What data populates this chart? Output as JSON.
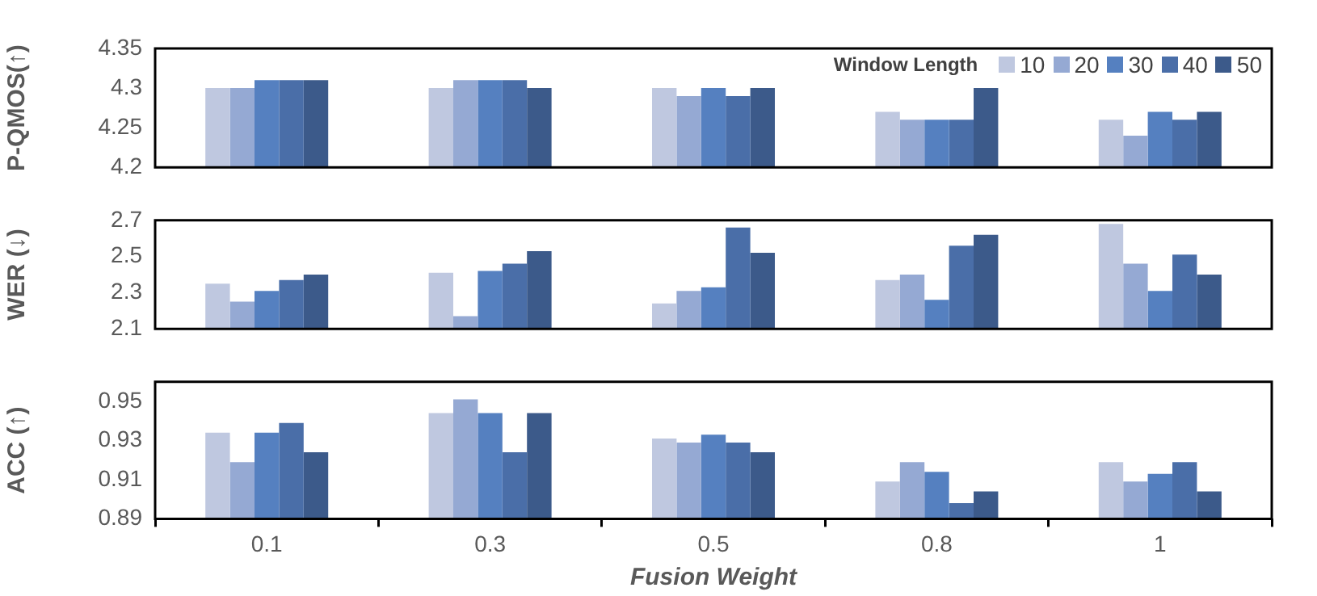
{
  "chart_data": [
    {
      "type": "bar",
      "categories": [
        "0.1",
        "0.3",
        "0.5",
        "0.8",
        "1"
      ],
      "ylabel": "P-QMOS(↑)",
      "ylim": [
        4.2,
        4.35
      ],
      "yticks": [
        4.2,
        4.25,
        4.3,
        4.35
      ],
      "tick_labels": "y",
      "legend": "top right",
      "legend_title": "Window Length",
      "series": [
        {
          "name": "10",
          "color": "#bfc8e0",
          "values": [
            4.3,
            4.3,
            4.3,
            4.27,
            4.26
          ]
        },
        {
          "name": "20",
          "color": "#95a9d3",
          "values": [
            4.3,
            4.31,
            4.29,
            4.26,
            4.24
          ]
        },
        {
          "name": "30",
          "color": "#5580c0",
          "values": [
            4.31,
            4.31,
            4.3,
            4.26,
            4.27
          ]
        },
        {
          "name": "40",
          "color": "#4a6ea8",
          "values": [
            4.31,
            4.31,
            4.29,
            4.26,
            4.26
          ]
        },
        {
          "name": "50",
          "color": "#3c5a8a",
          "values": [
            4.31,
            4.3,
            4.3,
            4.3,
            4.27
          ]
        }
      ]
    },
    {
      "type": "bar",
      "categories": [
        "0.1",
        "0.3",
        "0.5",
        "0.8",
        "1"
      ],
      "ylabel": "WER (↓)",
      "ylim": [
        2.1,
        2.7
      ],
      "yticks": [
        2.1,
        2.3,
        2.5,
        2.7
      ],
      "tick_labels": "y",
      "series": [
        {
          "color": "#bfc8e0",
          "values": [
            2.35,
            2.41,
            2.24,
            2.37,
            2.68
          ]
        },
        {
          "color": "#95a9d3",
          "values": [
            2.25,
            2.17,
            2.31,
            2.4,
            2.46
          ]
        },
        {
          "color": "#5580c0",
          "values": [
            2.31,
            2.42,
            2.33,
            2.26,
            2.31
          ]
        },
        {
          "color": "#4a6ea8",
          "values": [
            2.37,
            2.46,
            2.66,
            2.56,
            2.51
          ]
        },
        {
          "color": "#3c5a8a",
          "values": [
            2.4,
            2.53,
            2.52,
            2.62,
            2.4
          ]
        }
      ]
    },
    {
      "type": "bar",
      "categories": [
        "0.1",
        "0.3",
        "0.5",
        "0.8",
        "1"
      ],
      "ylabel": "ACC (↑)",
      "xlabel": "Fusion Weight",
      "ylim": [
        0.89,
        0.96
      ],
      "yticks": [
        0.89,
        0.91,
        0.93,
        0.95
      ],
      "series": [
        {
          "color": "#bfc8e0",
          "values": [
            0.934,
            0.944,
            0.931,
            0.909,
            0.919
          ]
        },
        {
          "color": "#95a9d3",
          "values": [
            0.919,
            0.951,
            0.929,
            0.919,
            0.909
          ]
        },
        {
          "color": "#5580c0",
          "values": [
            0.934,
            0.944,
            0.933,
            0.914,
            0.913
          ]
        },
        {
          "color": "#4a6ea8",
          "values": [
            0.939,
            0.924,
            0.929,
            0.898,
            0.919
          ]
        },
        {
          "color": "#3c5a8a",
          "values": [
            0.924,
            0.944,
            0.924,
            0.904,
            0.904
          ]
        }
      ]
    }
  ]
}
